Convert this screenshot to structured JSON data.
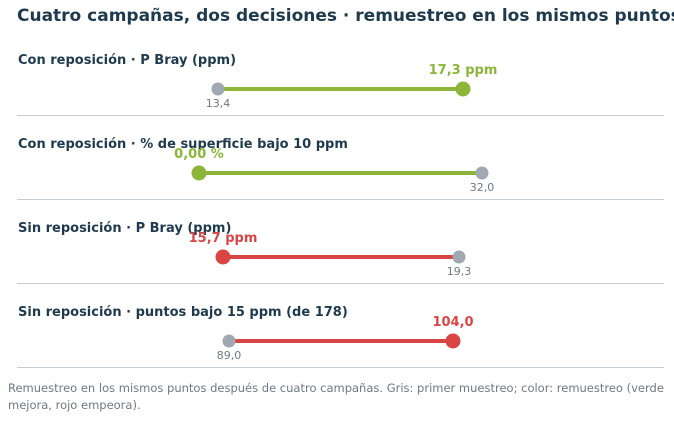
{
  "title": "Cuatro campañas, dos decisiones · remuestreo en los mismos puntos",
  "caption": "Remuestreo en los mismos puntos después de cuatro campañas. Gris: primer muestreo; color: remuestreo (verde mejora, rojo empeora).",
  "colors": {
    "baseline": "#a0a8b2",
    "improve": "#8cb53a",
    "worsen": "#d94545",
    "divider": "#c7ccd1"
  },
  "chart_data": {
    "type": "dumbbell",
    "rows": [
      {
        "label": "Con reposición · P Bray (ppm)",
        "from": 13.4,
        "to": 17.3,
        "from_label": "13,4",
        "to_label": "17,3 ppm",
        "trend": "improve"
      },
      {
        "label": "Con reposición · % de superficie bajo 10 ppm",
        "from": 32.0,
        "to": 0.0,
        "from_label": "32,0",
        "to_label": "0,00 %",
        "trend": "improve"
      },
      {
        "label": "Sin reposición · P Bray (ppm)",
        "from": 19.3,
        "to": 15.7,
        "from_label": "19,3",
        "to_label": "15,7 ppm",
        "trend": "worsen"
      },
      {
        "label": "Sin reposición · puntos bajo 15 ppm (de 178)",
        "from": 89.0,
        "to": 104.0,
        "from_label": "89,0",
        "to_label": "104,0",
        "trend": "worsen"
      }
    ]
  }
}
